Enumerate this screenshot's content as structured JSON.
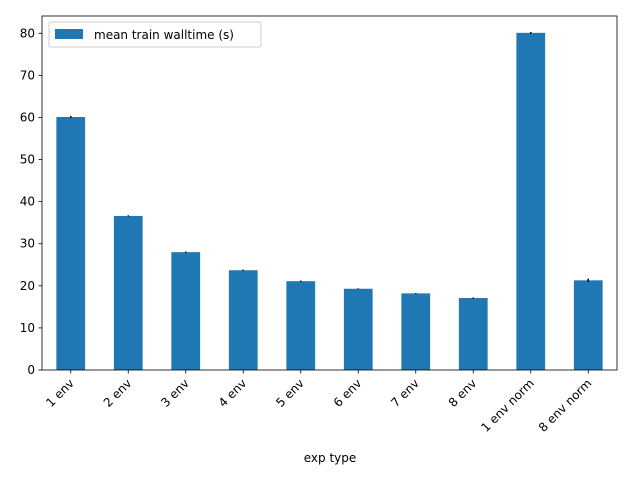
{
  "chart_data": {
    "type": "bar",
    "title": "",
    "xlabel": "exp type",
    "ylabel": "",
    "categories": [
      "1 env",
      "2 env",
      "3 env",
      "4 env",
      "5 env",
      "6 env",
      "7 env",
      "8 env",
      "1 env norm",
      "8 env norm"
    ],
    "series": [
      {
        "name": "mean train walltime (s)",
        "values": [
          60.1,
          36.6,
          28.0,
          23.7,
          21.1,
          19.3,
          18.2,
          17.1,
          80.1,
          21.3
        ],
        "errors": [
          0.25,
          0.15,
          0.15,
          0.15,
          0.15,
          0.1,
          0.1,
          0.15,
          0.2,
          0.4
        ],
        "color": "#1f77b4"
      }
    ],
    "ylim": [
      0,
      84.1
    ],
    "yticks": [
      0,
      10,
      20,
      30,
      40,
      50,
      60,
      70,
      80
    ],
    "grid": false,
    "legend_position": "top-left",
    "error_bar_color": "#000000"
  }
}
